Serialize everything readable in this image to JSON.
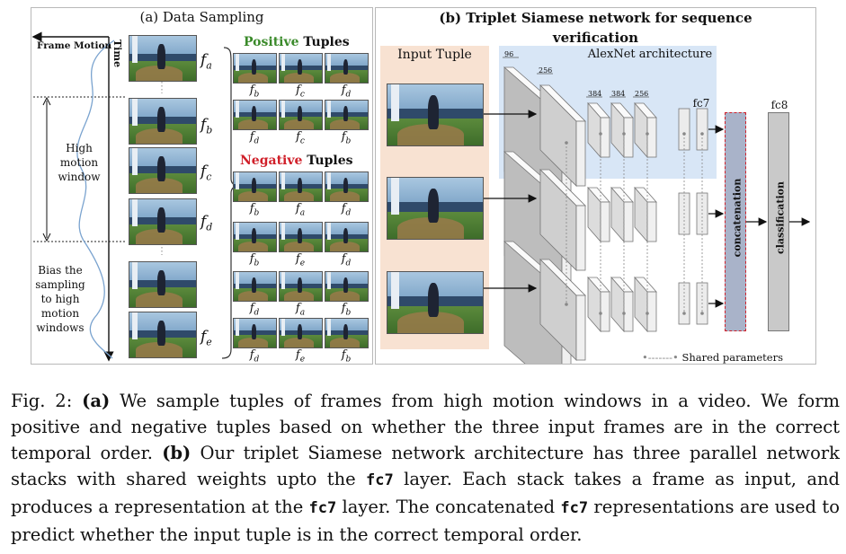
{
  "panel_a": {
    "title": "(a) Data Sampling",
    "frame_motion_label": "Frame Motion",
    "time_label": "Time",
    "high_motion_label": [
      "High",
      "motion",
      "window"
    ],
    "bias_label": [
      "Bias the",
      "sampling",
      "to high",
      "motion",
      "windows"
    ],
    "frame_labels": [
      "a",
      "b",
      "c",
      "d",
      "e"
    ],
    "positive_word": "Positive",
    "negative_word": "Negative",
    "tuples_word": "Tuples",
    "positive_rows": [
      [
        "b",
        "c",
        "d"
      ],
      [
        "d",
        "c",
        "b"
      ]
    ],
    "negative_rows": [
      [
        "b",
        "a",
        "d"
      ],
      [
        "b",
        "e",
        "d"
      ],
      [
        "d",
        "a",
        "b"
      ],
      [
        "d",
        "e",
        "b"
      ]
    ],
    "colors": {
      "positive": "#3a8a2a",
      "negative": "#d0202a"
    }
  },
  "panel_b": {
    "title_line1": "(b) Triplet Siamese network for sequence",
    "title_line2": "verification",
    "input_tuple_label": "Input Tuple",
    "alexnet_label": "AlexNet architecture",
    "layer_sizes": [
      "96",
      "256",
      "384",
      "384",
      "256"
    ],
    "fc7_label": "fc7",
    "fc8_label": "fc8",
    "concat_label": "concatenation",
    "class_label": "classification",
    "shared_label": "Shared parameters",
    "colors": {
      "input_bg": "#f8e2d2",
      "alexnet_bg": "#d8e6f6",
      "concat": "#a9b3c9",
      "class": "#c9c9c9"
    }
  },
  "caption": {
    "fig": "Fig. 2:",
    "a_marker": "(a)",
    "part1": " We sample tuples of frames from high motion windows in a video. We form positive and negative tuples based on whether the three input frames are in the correct temporal order. ",
    "b_marker": "(b)",
    "part2": " Our triplet Siamese network architecture has three parallel network stacks with shared weights upto the ",
    "code1": "fc7",
    "part3": " layer. Each stack takes a frame as input, and produces a representation at the ",
    "code2": "fc7",
    "part4": " layer. The concatenated ",
    "code3": "fc7",
    "part5": " representations are used to predict whether the input tuple is in the correct temporal order."
  }
}
